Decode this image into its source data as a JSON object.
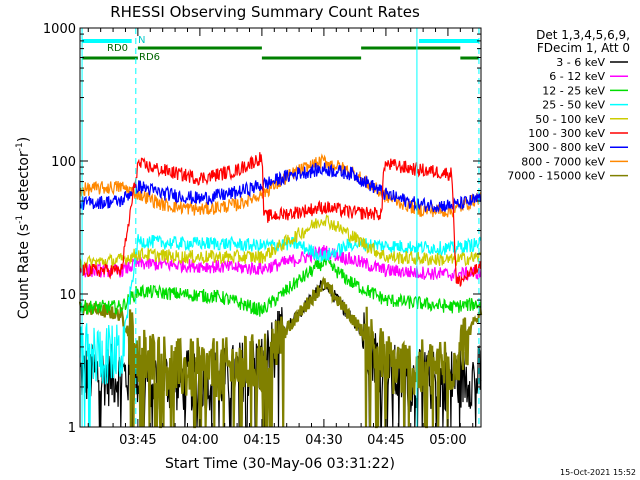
{
  "chart_data": {
    "type": "line",
    "title": "RHESSI Observing Summary Count Rates",
    "xlabel": "Start Time (30-May-06 03:31:22)",
    "ylabel_parts": [
      "Count Rate (s",
      "-1",
      " detector",
      "-1",
      ")"
    ],
    "yscale": "log",
    "xlim_min": [
      0,
      97
    ],
    "ylim": [
      1,
      1000
    ],
    "x_ticks": [
      {
        "min": 14,
        "label": "03:45"
      },
      {
        "min": 29,
        "label": "04:00"
      },
      {
        "min": 44,
        "label": "04:15"
      },
      {
        "min": 59,
        "label": "04:30"
      },
      {
        "min": 74,
        "label": "04:45"
      },
      {
        "min": 89,
        "label": "05:00"
      }
    ],
    "y_ticks": [
      {
        "value": 1,
        "label": "1"
      },
      {
        "value": 10,
        "label": "10"
      },
      {
        "value": 100,
        "label": "100"
      },
      {
        "value": 1000,
        "label": "1000"
      }
    ],
    "legend_header": [
      "Det 1,3,4,5,6,9,",
      "FDecim 1, Att 0"
    ],
    "series": [
      {
        "name": "3 - 6 keV",
        "color": "#000000",
        "base": 2.3,
        "peak": 12,
        "noise": 0.35,
        "night_val": 1,
        "min_val": 1,
        "profile": [
          [
            0,
            2.5
          ],
          [
            14,
            2.4
          ],
          [
            24,
            2.2
          ],
          [
            34,
            2.3
          ],
          [
            44,
            3.0
          ],
          [
            52,
            6.5
          ],
          [
            59,
            12
          ],
          [
            66,
            6.5
          ],
          [
            74,
            2.6
          ],
          [
            80,
            2.2
          ],
          [
            88,
            2.3
          ],
          [
            97,
            2.4
          ]
        ]
      },
      {
        "name": "6 - 12 keV",
        "color": "#ff00ff",
        "profile": [
          [
            0,
            15
          ],
          [
            10,
            15
          ],
          [
            14,
            17
          ],
          [
            24,
            16.5
          ],
          [
            34,
            16
          ],
          [
            44,
            15.5
          ],
          [
            52,
            18
          ],
          [
            59,
            21
          ],
          [
            66,
            18
          ],
          [
            74,
            15
          ],
          [
            82,
            14.5
          ],
          [
            90,
            14
          ],
          [
            97,
            14.5
          ]
        ]
      },
      {
        "name": "12 - 25 keV",
        "color": "#00dd00",
        "profile": [
          [
            0,
            8
          ],
          [
            10,
            8
          ],
          [
            14,
            10.5
          ],
          [
            24,
            10
          ],
          [
            34,
            9.5
          ],
          [
            44,
            7.5
          ],
          [
            52,
            12
          ],
          [
            59,
            17.5
          ],
          [
            66,
            12
          ],
          [
            74,
            9
          ],
          [
            82,
            8.5
          ],
          [
            90,
            8
          ],
          [
            97,
            8.5
          ]
        ]
      },
      {
        "name": "25 - 50 keV",
        "color": "#00ffff",
        "profile": [
          [
            0,
            3.5
          ],
          [
            10,
            3.5
          ],
          [
            14,
            25
          ],
          [
            24,
            24
          ],
          [
            34,
            24
          ],
          [
            44,
            23
          ],
          [
            52,
            24
          ],
          [
            59,
            19
          ],
          [
            66,
            24
          ],
          [
            74,
            23
          ],
          [
            82,
            22.5
          ],
          [
            90,
            22
          ],
          [
            97,
            24
          ]
        ]
      },
      {
        "name": "50 - 100 keV",
        "color": "#cccc00",
        "profile": [
          [
            0,
            17
          ],
          [
            10,
            18
          ],
          [
            14,
            20
          ],
          [
            24,
            19
          ],
          [
            34,
            19
          ],
          [
            44,
            19
          ],
          [
            52,
            27
          ],
          [
            59,
            37
          ],
          [
            66,
            27
          ],
          [
            74,
            19
          ],
          [
            82,
            18.5
          ],
          [
            90,
            18
          ],
          [
            97,
            19
          ]
        ]
      },
      {
        "name": "100 - 300 keV",
        "color": "#ff0000",
        "profile": [
          [
            0,
            15
          ],
          [
            10,
            15
          ],
          [
            14,
            95
          ],
          [
            20,
            85
          ],
          [
            29,
            74
          ],
          [
            38,
            85
          ],
          [
            44,
            107
          ],
          [
            44.5,
            38
          ],
          [
            52,
            41
          ],
          [
            59,
            45
          ],
          [
            66,
            41
          ],
          [
            73,
            40
          ],
          [
            73.5,
            95
          ],
          [
            82,
            86
          ],
          [
            90,
            80
          ],
          [
            91,
            12
          ],
          [
            97,
            16
          ]
        ]
      },
      {
        "name": "300 - 800 keV",
        "color": "#0000ff",
        "profile": [
          [
            0,
            48
          ],
          [
            10,
            50
          ],
          [
            14,
            65
          ],
          [
            20,
            57
          ],
          [
            29,
            52
          ],
          [
            38,
            58
          ],
          [
            44,
            66
          ],
          [
            52,
            80
          ],
          [
            59,
            87
          ],
          [
            66,
            80
          ],
          [
            74,
            56
          ],
          [
            82,
            47
          ],
          [
            90,
            46
          ],
          [
            97,
            52
          ]
        ]
      },
      {
        "name": "800 - 7000 keV",
        "color": "#ff8800",
        "profile": [
          [
            0,
            61
          ],
          [
            10,
            64
          ],
          [
            14,
            57
          ],
          [
            20,
            47
          ],
          [
            29,
            43
          ],
          [
            38,
            47
          ],
          [
            44,
            57
          ],
          [
            52,
            82
          ],
          [
            59,
            100
          ],
          [
            66,
            82
          ],
          [
            74,
            54
          ],
          [
            82,
            43
          ],
          [
            90,
            42
          ],
          [
            97,
            54
          ]
        ]
      },
      {
        "name": "7000 - 15000 keV",
        "color": "#808000",
        "profile": [
          [
            0,
            8
          ],
          [
            10,
            7
          ],
          [
            14,
            3.5
          ],
          [
            24,
            2.7
          ],
          [
            34,
            2.7
          ],
          [
            44,
            3.0
          ],
          [
            52,
            6.5
          ],
          [
            59,
            12
          ],
          [
            66,
            6.5
          ],
          [
            74,
            3.0
          ],
          [
            82,
            2.6
          ],
          [
            90,
            3.0
          ],
          [
            97,
            7.5
          ]
        ]
      }
    ],
    "flag_labels": [
      "N",
      "RD0",
      "RD6"
    ],
    "timestamp": "15-Oct-2021 15:52"
  }
}
